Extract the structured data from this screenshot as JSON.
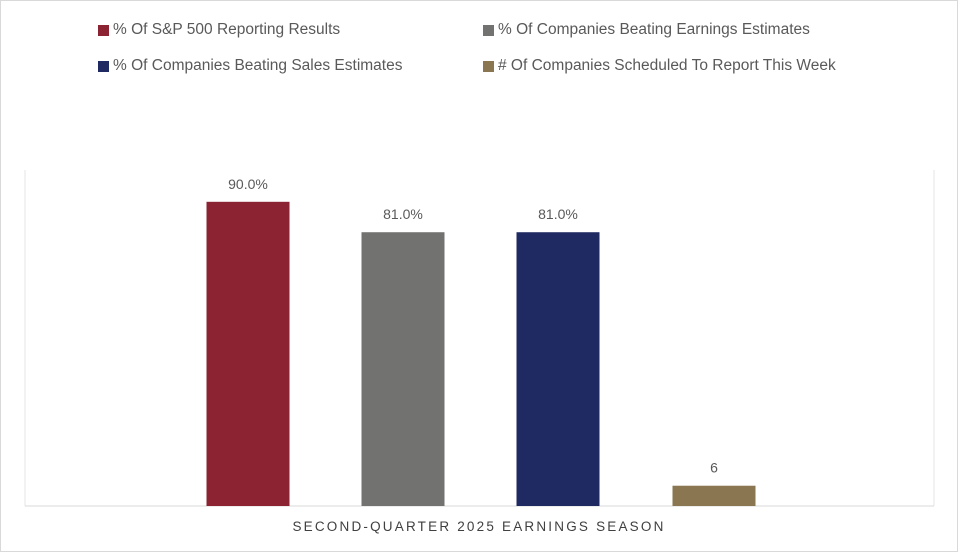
{
  "chart_data": {
    "type": "bar",
    "title": "",
    "xlabel": "SECOND-QUARTER 2025 EARNINGS SEASON",
    "ylabel": "",
    "ylim": [
      0,
      100
    ],
    "grid": false,
    "legend_position": "top",
    "series": [
      {
        "name": "% Of S&P 500 Reporting Results",
        "value": 90.0,
        "label": "90.0%",
        "color": "#8b2332"
      },
      {
        "name": "% Of Companies Beating Earnings Estimates",
        "value": 81.0,
        "label": "81.0%",
        "color": "#727271"
      },
      {
        "name": "% Of Companies Beating Sales Estimates",
        "value": 81.0,
        "label": "81.0%",
        "color": "#1f2a62"
      },
      {
        "name": "# Of Companies Scheduled To Report This Week",
        "value": 6,
        "label": "6",
        "color": "#8a7650"
      }
    ]
  }
}
